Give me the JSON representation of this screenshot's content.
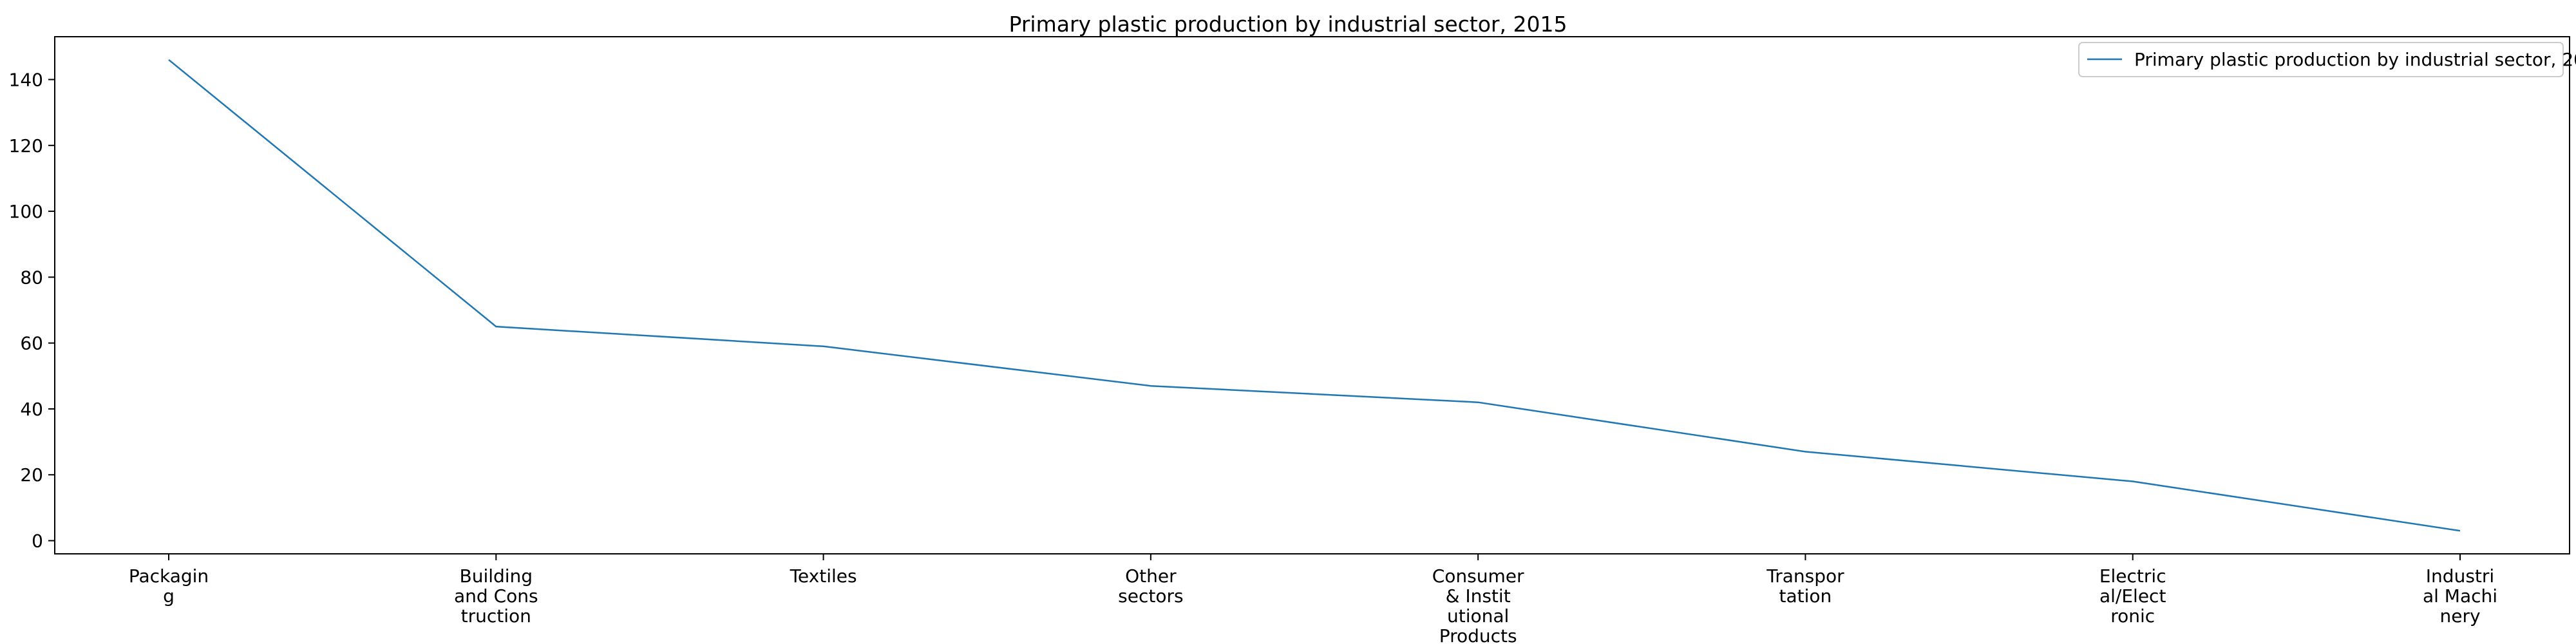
{
  "chart_data": {
    "type": "line",
    "title": "Primary plastic production by industrial sector, 2015",
    "xlabel": "",
    "ylabel": "",
    "categories": [
      "Packaging",
      "Building and Construction",
      "Textiles",
      "Other sectors",
      "Consumer & Institutional Products",
      "Transportation",
      "Electrical/Electronic",
      "Industrial Machinery"
    ],
    "category_labels_wrapped": [
      [
        "Packagin",
        "g"
      ],
      [
        "Building",
        "and Cons",
        "truction"
      ],
      [
        "Textiles"
      ],
      [
        "Other",
        "sectors"
      ],
      [
        "Consumer",
        "& Instit",
        "utional",
        "Products"
      ],
      [
        "Transpor",
        "tation"
      ],
      [
        "Electric",
        "al/Elect",
        "ronic"
      ],
      [
        "Industri",
        "al Machi",
        "nery"
      ]
    ],
    "series": [
      {
        "name": "Primary plastic production by industrial sector, 2015",
        "color": "#1f77b4",
        "values": [
          146,
          65,
          59,
          47,
          42,
          27,
          18,
          3
        ]
      }
    ],
    "ylim": [
      -4,
      153
    ],
    "yticks": [
      0,
      20,
      40,
      60,
      80,
      100,
      120,
      140
    ],
    "grid": false,
    "legend_position": "top-right"
  }
}
